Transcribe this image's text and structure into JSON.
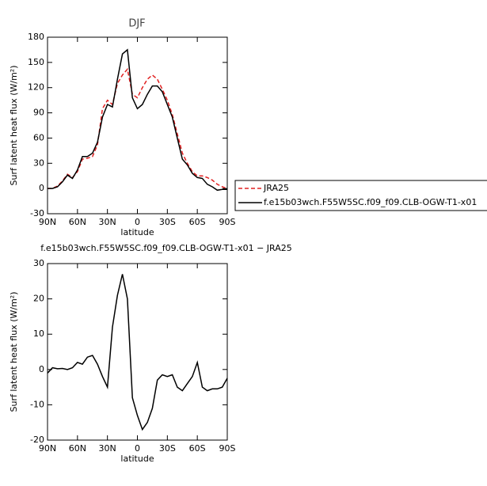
{
  "chart_data": [
    {
      "type": "line",
      "title": "DJF",
      "xlabel": "latitude",
      "ylabel": "Surf latent heat flux (W/m²)",
      "xlim": [
        90,
        -90
      ],
      "xticks": [
        {
          "value": 90,
          "label": "90N"
        },
        {
          "value": 60,
          "label": "60N"
        },
        {
          "value": 30,
          "label": "30N"
        },
        0,
        {
          "value": -30,
          "label": "30S"
        },
        {
          "value": -60,
          "label": "60S"
        },
        {
          "value": -90,
          "label": "90S"
        }
      ],
      "ylim": [
        -30,
        180
      ],
      "yticks": [
        -30,
        0,
        30,
        60,
        90,
        120,
        150,
        180
      ],
      "x": [
        90,
        85,
        80,
        75,
        70,
        65,
        60,
        55,
        50,
        45,
        40,
        35,
        30,
        25,
        20,
        15,
        10,
        5,
        0,
        -5,
        -10,
        -15,
        -20,
        -25,
        -30,
        -35,
        -40,
        -45,
        -50,
        -55,
        -60,
        -65,
        -70,
        -75,
        -80,
        -85,
        -90
      ],
      "series": [
        {
          "name": "JRA25",
          "color": "#e02020",
          "dash": true,
          "values": [
            0,
            0,
            3,
            9,
            17,
            13,
            20,
            35,
            36,
            38,
            52,
            95,
            105,
            100,
            125,
            135,
            142,
            112,
            108,
            120,
            130,
            135,
            130,
            118,
            105,
            88,
            65,
            42,
            30,
            20,
            15,
            15,
            13,
            10,
            5,
            2,
            0
          ]
        },
        {
          "name": "f.e15b03wch.F55W5SC.f09_f09.CLB-OGW-T1-x01",
          "color": "#000000",
          "dash": false,
          "values": [
            0,
            0,
            2,
            8,
            16,
            12,
            22,
            38,
            38,
            42,
            55,
            85,
            100,
            97,
            130,
            160,
            165,
            108,
            95,
            100,
            112,
            122,
            122,
            115,
            100,
            85,
            60,
            35,
            28,
            18,
            13,
            12,
            5,
            2,
            -2,
            -1,
            -1
          ]
        }
      ]
    },
    {
      "type": "line",
      "title": "f.e15b03wch.F55W5SC.f09_f09.CLB-OGW-T1-x01 − JRA25",
      "xlabel": "latitude",
      "ylabel": "Surf latent heat flux (W/m²)",
      "xlim": [
        90,
        -90
      ],
      "xticks": [
        {
          "value": 90,
          "label": "90N"
        },
        {
          "value": 60,
          "label": "60N"
        },
        {
          "value": 30,
          "label": "30N"
        },
        0,
        {
          "value": -30,
          "label": "30S"
        },
        {
          "value": -60,
          "label": "60S"
        },
        {
          "value": -90,
          "label": "90S"
        }
      ],
      "ylim": [
        -20,
        30
      ],
      "yticks": [
        -20,
        -10,
        0,
        10,
        20,
        30
      ],
      "x": [
        90,
        85,
        80,
        75,
        70,
        65,
        60,
        55,
        50,
        45,
        40,
        35,
        30,
        25,
        20,
        15,
        10,
        5,
        0,
        -5,
        -10,
        -15,
        -20,
        -25,
        -30,
        -35,
        -40,
        -45,
        -50,
        -55,
        -60,
        -65,
        -70,
        -75,
        -80,
        -85,
        -90
      ],
      "series": [
        {
          "color": "#000000",
          "dash": false,
          "values": [
            -1,
            0.5,
            0.2,
            0.3,
            0,
            0.5,
            2,
            1.5,
            3.5,
            4,
            1.5,
            -2,
            -5,
            12,
            21,
            27,
            20,
            -8,
            -13,
            -17,
            -15,
            -11,
            -3,
            -1.5,
            -2,
            -1.5,
            -5,
            -6,
            -4,
            -2,
            2,
            -5,
            -6,
            -5.5,
            -5.5,
            -5,
            -2.5
          ]
        }
      ]
    }
  ]
}
